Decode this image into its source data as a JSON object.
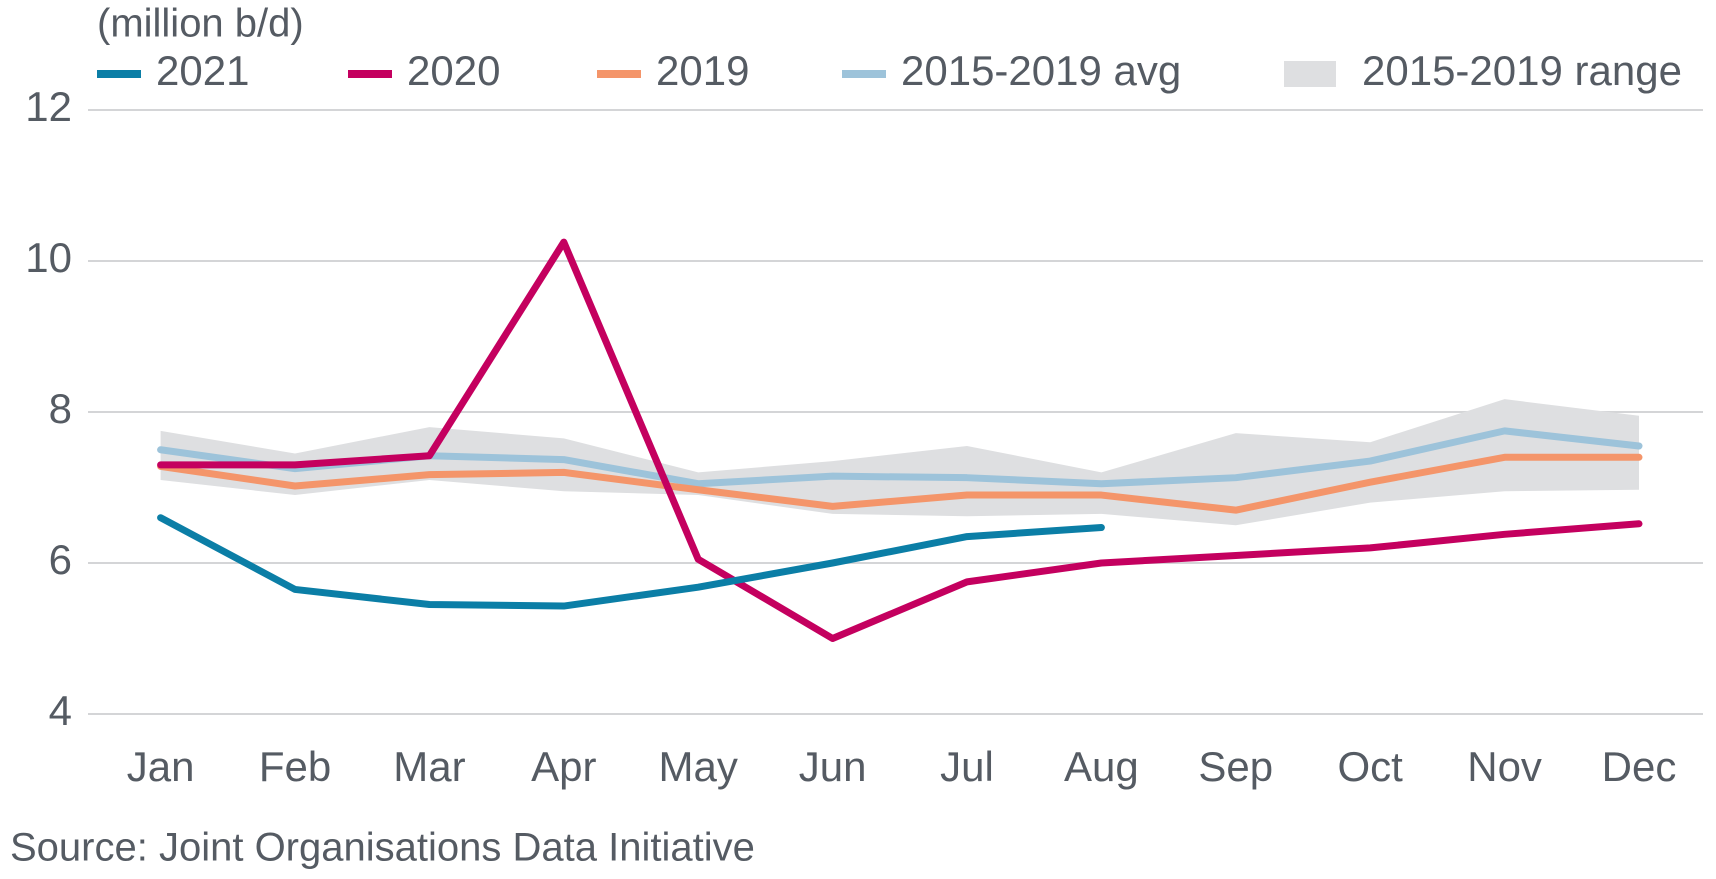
{
  "chart_data": {
    "type": "line",
    "y_label": "(million b/d)",
    "source": "Source: Joint Organisations Data Initiative",
    "categories": [
      "Jan",
      "Feb",
      "Mar",
      "Apr",
      "May",
      "Jun",
      "Jul",
      "Aug",
      "Sep",
      "Oct",
      "Nov",
      "Dec"
    ],
    "ylim": [
      4,
      12
    ],
    "yticks": [
      4,
      6,
      8,
      10,
      12
    ],
    "grid": true,
    "series": [
      {
        "name": "2021",
        "color": "#0b7ea6",
        "values": [
          6.6,
          5.65,
          5.45,
          5.43,
          5.68,
          6.0,
          6.35,
          6.47,
          null,
          null,
          null,
          null
        ]
      },
      {
        "name": "2020",
        "color": "#c4005f",
        "values": [
          7.3,
          7.3,
          7.42,
          10.25,
          6.05,
          5.0,
          5.75,
          6.0,
          6.1,
          6.2,
          6.38,
          6.52
        ]
      },
      {
        "name": "2019",
        "color": "#f4956a",
        "values": [
          7.28,
          7.02,
          7.17,
          7.2,
          6.97,
          6.75,
          6.9,
          6.9,
          6.7,
          7.07,
          7.4,
          7.4
        ]
      },
      {
        "name": "2015-2019 avg",
        "color": "#9dc3da",
        "values": [
          7.5,
          7.25,
          7.42,
          7.37,
          7.05,
          7.15,
          7.13,
          7.05,
          7.13,
          7.35,
          7.75,
          7.55
        ]
      }
    ],
    "range": {
      "name": "2015-2019 range",
      "color": "#dedfe1",
      "low": [
        7.1,
        6.9,
        7.1,
        6.95,
        6.9,
        6.65,
        6.62,
        6.65,
        6.5,
        6.8,
        6.95,
        6.97
      ],
      "high": [
        7.75,
        7.45,
        7.8,
        7.65,
        7.2,
        7.35,
        7.55,
        7.2,
        7.72,
        7.6,
        8.17,
        7.95
      ]
    }
  }
}
